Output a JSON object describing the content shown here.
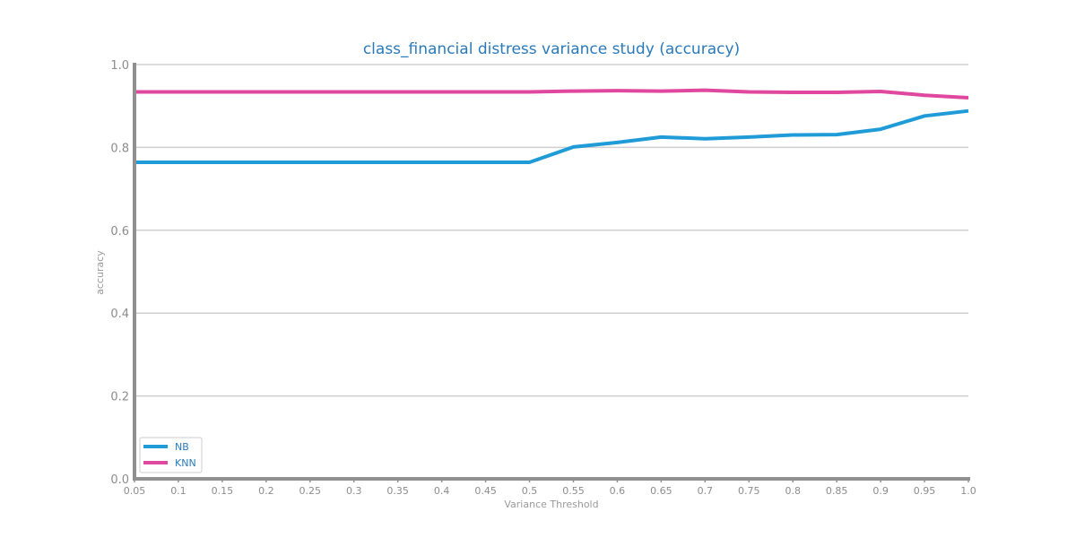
{
  "chart_data": {
    "type": "line",
    "title": "class_financial distress variance study (accuracy)",
    "xlabel": "Variance Threshold",
    "ylabel": "accuracy",
    "x": [
      "0.05",
      "0.1",
      "0.15",
      "0.2",
      "0.25",
      "0.3",
      "0.35",
      "0.4",
      "0.45",
      "0.5",
      "0.55",
      "0.6",
      "0.65",
      "0.7",
      "0.75",
      "0.8",
      "0.85",
      "0.9",
      "0.95",
      "1.0"
    ],
    "yticks": [
      "0.0",
      "0.2",
      "0.4",
      "0.6",
      "0.8",
      "1.0"
    ],
    "ylim": [
      0,
      1
    ],
    "grid": "horizontal",
    "legend_position": "lower-left",
    "series": [
      {
        "name": "NB",
        "color": "#1f9bd7",
        "values": [
          0.764,
          0.764,
          0.764,
          0.764,
          0.764,
          0.764,
          0.764,
          0.764,
          0.764,
          0.764,
          0.801,
          0.812,
          0.825,
          0.821,
          0.825,
          0.83,
          0.831,
          0.844,
          0.876,
          0.888
        ]
      },
      {
        "name": "KNN",
        "color": "#e0479e",
        "values": [
          0.934,
          0.934,
          0.934,
          0.934,
          0.934,
          0.934,
          0.934,
          0.934,
          0.934,
          0.934,
          0.936,
          0.937,
          0.936,
          0.938,
          0.934,
          0.933,
          0.933,
          0.935,
          0.926,
          0.92
        ]
      }
    ]
  }
}
